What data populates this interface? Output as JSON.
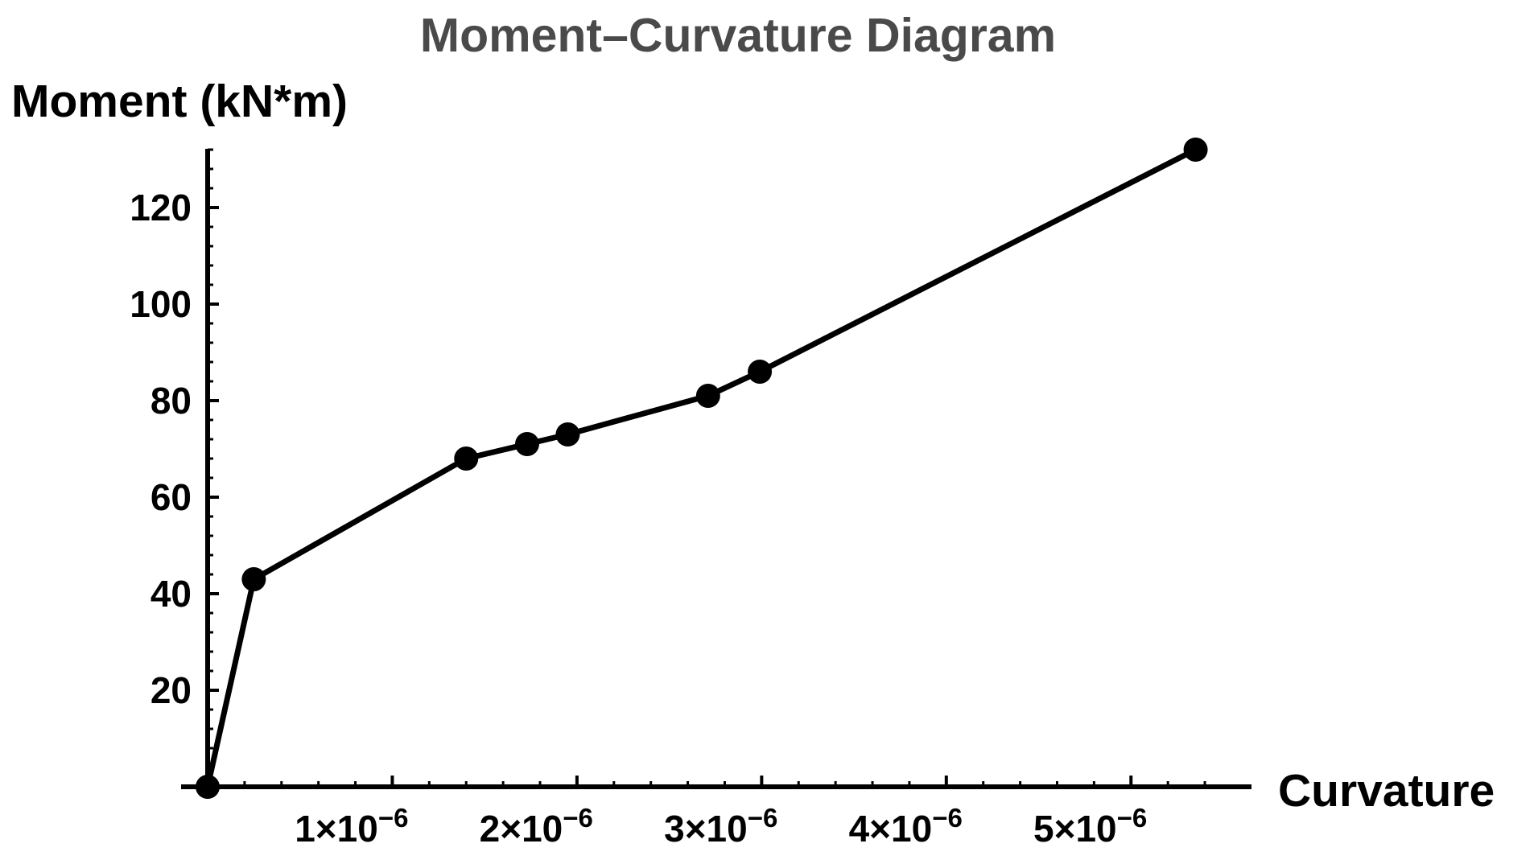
{
  "chart_data": {
    "type": "line",
    "title": "Moment–Curvature Diagram",
    "xlabel": "Curvature",
    "ylabel": "Moment (kN*m)",
    "xlim": [
      0,
      5.5e-06
    ],
    "ylim": [
      0,
      133
    ],
    "x_ticks": [
      {
        "value": 1e-06,
        "mant": "1",
        "exp": "−6"
      },
      {
        "value": 2e-06,
        "mant": "2",
        "exp": "−6"
      },
      {
        "value": 3e-06,
        "mant": "3",
        "exp": "−6"
      },
      {
        "value": 4e-06,
        "mant": "4",
        "exp": "−6"
      },
      {
        "value": 5e-06,
        "mant": "5",
        "exp": "−6"
      }
    ],
    "y_ticks": [
      20,
      40,
      60,
      80,
      100,
      120
    ],
    "grid": false,
    "series": [
      {
        "color": "#000000",
        "markers": true,
        "points": [
          {
            "x": 0,
            "y": 0
          },
          {
            "x": 2.5e-07,
            "y": 43
          },
          {
            "x": 1.4e-06,
            "y": 68
          },
          {
            "x": 1.73e-06,
            "y": 71
          },
          {
            "x": 1.95e-06,
            "y": 73
          },
          {
            "x": 2.71e-06,
            "y": 81
          },
          {
            "x": 2.99e-06,
            "y": 86
          },
          {
            "x": 5.35e-06,
            "y": 132
          }
        ]
      }
    ]
  }
}
